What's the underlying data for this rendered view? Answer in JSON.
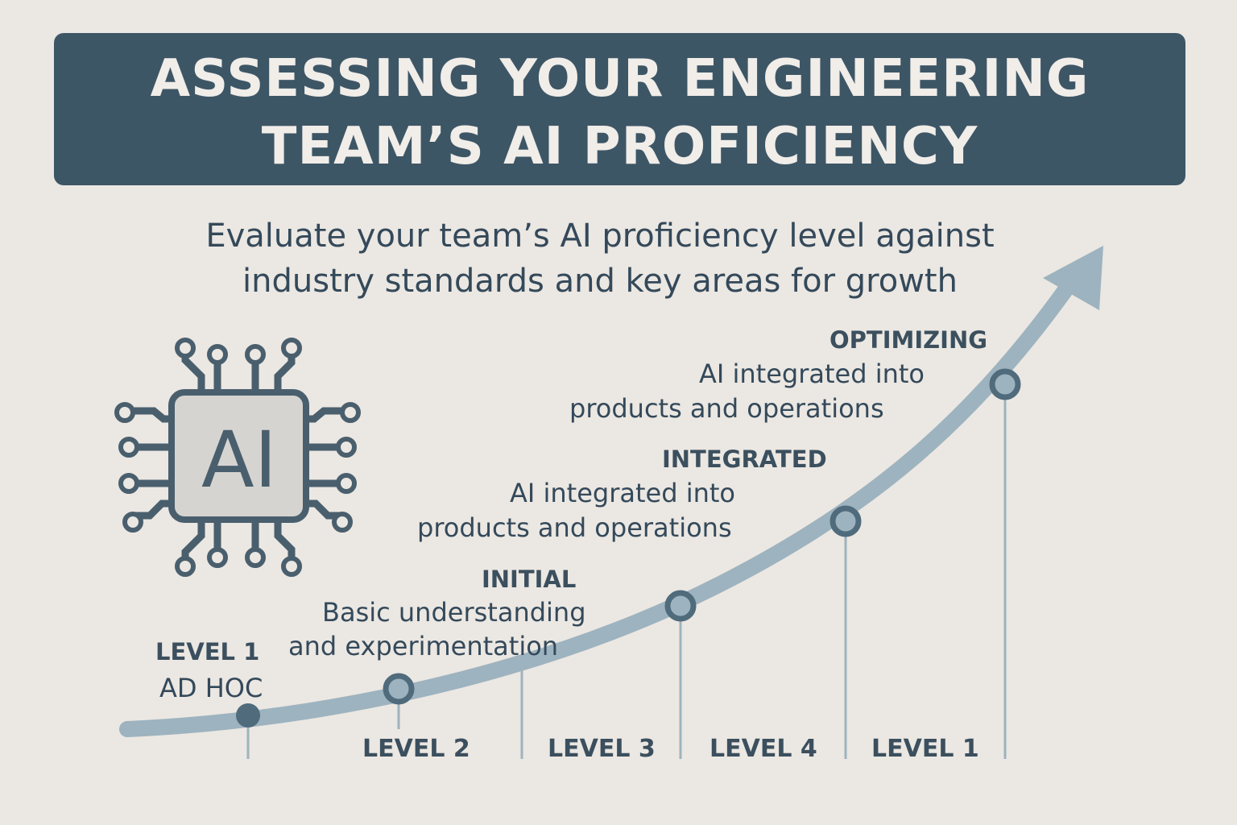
{
  "title": {
    "line1": "ASSESSING YOUR ENGINEERING",
    "line2": "TEAM’S AI PROFICIENCY"
  },
  "subtitle": {
    "line1": "Evaluate your team’s AI proficiency level against",
    "line2": "industry standards and key areas for growth"
  },
  "chip": {
    "label": "AI",
    "icon": "ai-chip-icon"
  },
  "stages": [
    {
      "heading": "LEVEL 1",
      "desc": [
        "AD HOC"
      ]
    },
    {
      "heading": "INITIAL",
      "desc": [
        "Basic understanding",
        "and experimentation"
      ]
    },
    {
      "heading": "INTEGRATED",
      "desc": [
        "AI integrated into",
        "products and operations"
      ]
    },
    {
      "heading": "OPTIMIZING",
      "desc": [
        "AI integrated into",
        "products and operations"
      ]
    }
  ],
  "axis_labels": [
    "LEVEL 2",
    "LEVEL 3",
    "LEVEL 4",
    "LEVEL 1"
  ],
  "colors": {
    "background": "#ebe7e2",
    "banner": "#3d5666",
    "text": "#34495a",
    "curve": "#9db3bf",
    "node": "#4f6b7c"
  }
}
